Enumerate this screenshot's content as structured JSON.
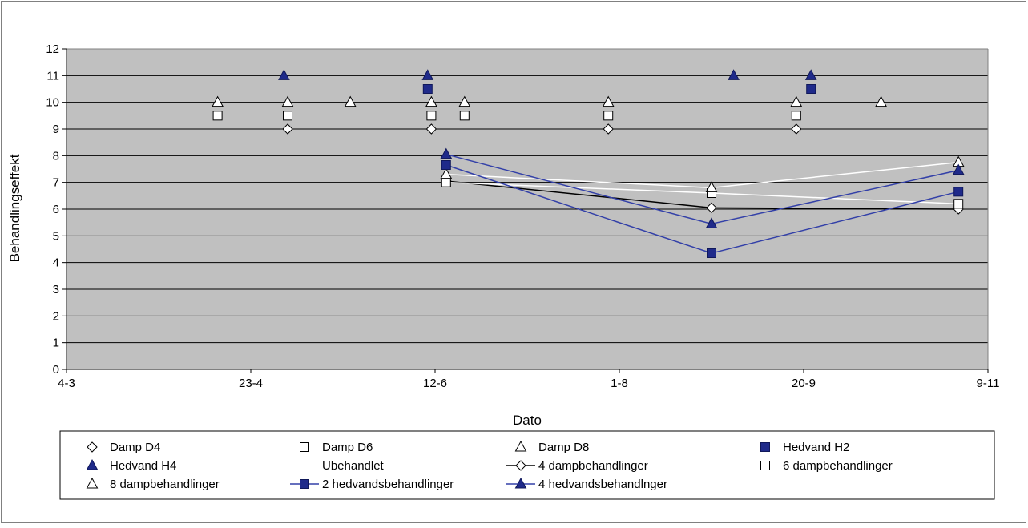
{
  "colors": {
    "plot_bg": "#c0c0c0",
    "gridline": "#000000",
    "navy": "#1f2a8a",
    "blue_line": "#3340a8",
    "black_line": "#000000",
    "white_line": "#ffffff"
  },
  "chart_data": {
    "type": "scatter",
    "title": "",
    "xlabel": "Dato",
    "ylabel": "Behandlingseffekt",
    "x_ticks": [
      "4-3",
      "23-4",
      "12-6",
      "1-8",
      "20-9",
      "9-11"
    ],
    "x_range": [
      "4-3",
      "9-11"
    ],
    "y_ticks": [
      "0",
      "1",
      "2",
      "3",
      "4",
      "5",
      "6",
      "7",
      "8",
      "9",
      "10",
      "11",
      "12"
    ],
    "ylim": [
      0,
      12
    ],
    "grid": true,
    "legend_position": "bottom",
    "series": [
      {
        "name": "Damp D4",
        "kind": "marker",
        "marker": "diamond",
        "fill": "white",
        "points": [
          [
            "3-5",
            9
          ],
          [
            "11-6",
            9
          ],
          [
            "29-7",
            9
          ],
          [
            "18-9",
            9
          ]
        ]
      },
      {
        "name": "Damp D6",
        "kind": "marker",
        "marker": "square",
        "fill": "white",
        "points": [
          [
            "14-4",
            9.5
          ],
          [
            "3-5",
            9.5
          ],
          [
            "11-6",
            9.5
          ],
          [
            "20-6",
            9.5
          ],
          [
            "29-7",
            9.5
          ],
          [
            "18-9",
            9.5
          ]
        ]
      },
      {
        "name": "Damp D8",
        "kind": "marker",
        "marker": "triangle",
        "fill": "white",
        "points": [
          [
            "14-4",
            10
          ],
          [
            "3-5",
            10
          ],
          [
            "20-5",
            10
          ],
          [
            "11-6",
            10
          ],
          [
            "20-6",
            10
          ],
          [
            "29-7",
            10
          ],
          [
            "18-9",
            10
          ],
          [
            "11-10",
            10
          ]
        ]
      },
      {
        "name": "Hedvand H2",
        "kind": "marker",
        "marker": "square",
        "fill": "navy",
        "points": [
          [
            "10-6",
            10.5
          ],
          [
            "22-9",
            10.5
          ]
        ]
      },
      {
        "name": "Hedvand H4",
        "kind": "marker",
        "marker": "triangle",
        "fill": "navy",
        "points": [
          [
            "2-5",
            11
          ],
          [
            "10-6",
            11
          ],
          [
            "1-9",
            11
          ],
          [
            "22-9",
            11
          ]
        ]
      },
      {
        "name": "Ubehandlet",
        "kind": "none",
        "points": []
      },
      {
        "name": "4 dampbehandlinger",
        "kind": "line",
        "line_color": "black",
        "marker": "diamond",
        "fill": "white",
        "points": [
          [
            "15-6",
            7.05
          ],
          [
            "26-8",
            6.05
          ],
          [
            "1-11",
            6.0
          ]
        ]
      },
      {
        "name": "6 dampbehandlinger",
        "kind": "line",
        "line_color": "white",
        "marker": "square",
        "fill": "white",
        "points": [
          [
            "15-6",
            7.0
          ],
          [
            "26-8",
            6.6
          ],
          [
            "1-11",
            6.2
          ]
        ]
      },
      {
        "name": "8 dampbehandlinger",
        "kind": "line",
        "line_color": "white",
        "marker": "triangle",
        "fill": "white",
        "points": [
          [
            "15-6",
            7.3
          ],
          [
            "26-8",
            6.8
          ],
          [
            "1-11",
            7.75
          ]
        ]
      },
      {
        "name": "2 hedvandsbehandlinger",
        "kind": "line",
        "line_color": "blue",
        "marker": "square",
        "fill": "navy",
        "points": [
          [
            "15-6",
            7.65
          ],
          [
            "26-8",
            4.35
          ],
          [
            "1-11",
            6.65
          ]
        ]
      },
      {
        "name": "4 hedvandsbehandlnger",
        "kind": "line",
        "line_color": "blue",
        "marker": "triangle",
        "fill": "navy",
        "points": [
          [
            "15-6",
            8.05
          ],
          [
            "26-8",
            5.45
          ],
          [
            "1-11",
            7.45
          ]
        ]
      }
    ]
  }
}
